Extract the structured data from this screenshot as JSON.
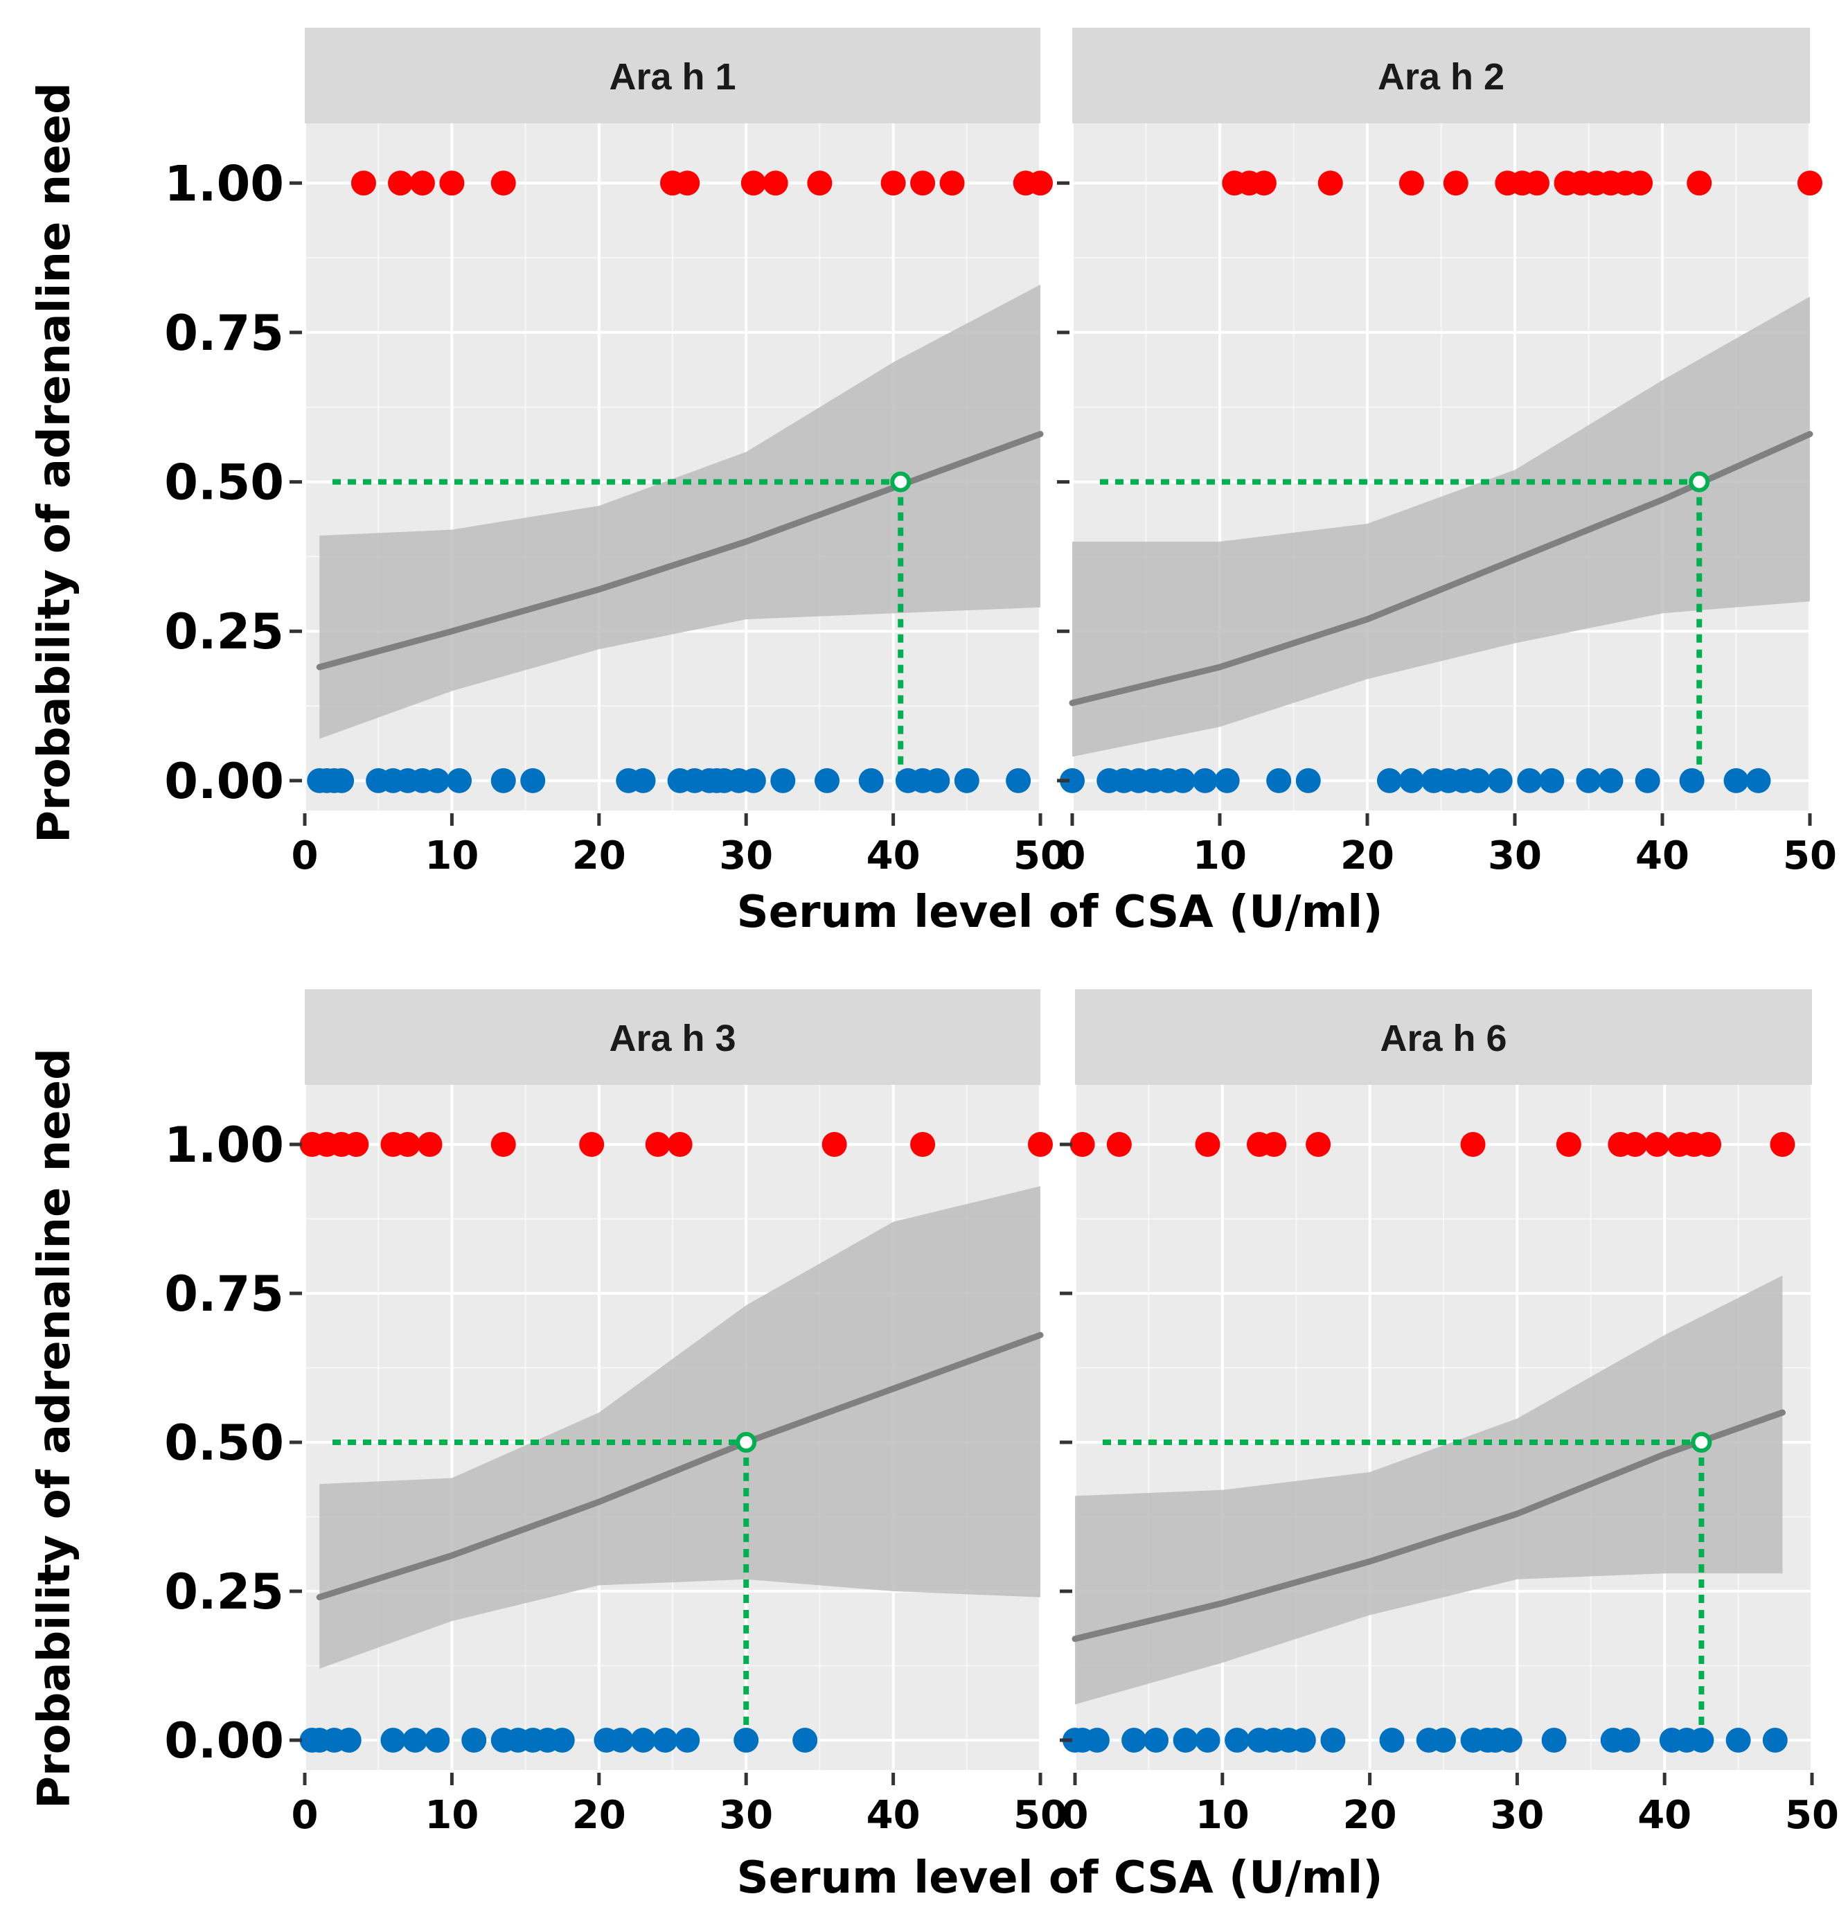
{
  "chart_data": {
    "type": "scatter",
    "layout": "facet-grid 2x2",
    "xlabel": "Serum level of CSA (U/ml)",
    "ylabel": "Probability of adrenaline need",
    "xlim": [
      0,
      50
    ],
    "ylim": [
      -0.05,
      1.1
    ],
    "x_ticks": [
      "0",
      "10",
      "20",
      "30",
      "40",
      "50"
    ],
    "y_ticks": [
      "0.00",
      "0.25",
      "0.50",
      "0.75",
      "1.00"
    ],
    "y_tick_values": [
      0,
      0.25,
      0.5,
      0.75,
      1.0
    ],
    "grid": true,
    "threshold_probability": 0.5,
    "colors": {
      "panel_bg": "#ebebeb",
      "strip_bg": "#d9d9d9",
      "grid": "#ffffff",
      "needed": "#ff0000",
      "not_needed": "#0070c0",
      "fit_line": "#808080",
      "ribbon": "#bdbdbd",
      "threshold": "#00b050"
    },
    "panels": [
      {
        "title": "Ara h 1",
        "fit": {
          "x": [
            1,
            10,
            20,
            30,
            40,
            50
          ],
          "y": [
            0.19,
            0.25,
            0.32,
            0.4,
            0.49,
            0.58
          ]
        },
        "ci_lower": {
          "x": [
            1,
            10,
            20,
            30,
            40,
            50
          ],
          "y": [
            0.07,
            0.15,
            0.22,
            0.27,
            0.28,
            0.29
          ]
        },
        "ci_upper": {
          "x": [
            1,
            10,
            20,
            30,
            40,
            50
          ],
          "y": [
            0.41,
            0.42,
            0.46,
            0.55,
            0.7,
            0.83
          ]
        },
        "threshold_x": 40.5,
        "points_y1": [
          4,
          6.5,
          8,
          10,
          13.5,
          25,
          26,
          30.5,
          32,
          35,
          40,
          42,
          44,
          49,
          50
        ],
        "points_y0": [
          1,
          1.5,
          2,
          2.5,
          5,
          6,
          7,
          8,
          9,
          10.5,
          13.5,
          15.5,
          22,
          23,
          25.5,
          26.5,
          27.5,
          28,
          28.5,
          29.5,
          30.5,
          32.5,
          35.5,
          38.5,
          41,
          42,
          43,
          45,
          48.5
        ]
      },
      {
        "title": "Ara h 2",
        "fit": {
          "x": [
            0,
            10,
            20,
            30,
            40,
            50
          ],
          "y": [
            0.13,
            0.19,
            0.27,
            0.37,
            0.47,
            0.58
          ]
        },
        "ci_lower": {
          "x": [
            0,
            10,
            20,
            30,
            40,
            50
          ],
          "y": [
            0.04,
            0.09,
            0.17,
            0.23,
            0.28,
            0.3
          ]
        },
        "ci_upper": {
          "x": [
            0,
            10,
            20,
            30,
            40,
            50
          ],
          "y": [
            0.4,
            0.4,
            0.43,
            0.52,
            0.67,
            0.81
          ]
        },
        "threshold_x": 42.5,
        "points_y1": [
          11,
          12,
          13,
          17.5,
          23,
          26,
          29.5,
          30.5,
          31.5,
          33.5,
          34.5,
          35.5,
          36.5,
          37.5,
          38.5,
          42.5,
          50
        ],
        "points_y0": [
          0,
          2.5,
          3.5,
          4.5,
          5.5,
          6.5,
          7.5,
          9,
          10.5,
          14,
          16,
          21.5,
          23,
          24.5,
          25.5,
          26.5,
          27.5,
          29,
          31,
          32.5,
          35,
          36.5,
          39,
          42,
          45,
          46.5
        ]
      },
      {
        "title": "Ara h 3",
        "fit": {
          "x": [
            1,
            10,
            20,
            30,
            40,
            50
          ],
          "y": [
            0.24,
            0.31,
            0.4,
            0.5,
            0.59,
            0.68
          ]
        },
        "ci_lower": {
          "x": [
            1,
            10,
            20,
            30,
            40,
            50
          ],
          "y": [
            0.12,
            0.2,
            0.26,
            0.27,
            0.25,
            0.24
          ]
        },
        "ci_upper": {
          "x": [
            1,
            10,
            20,
            30,
            40,
            50
          ],
          "y": [
            0.43,
            0.44,
            0.55,
            0.73,
            0.87,
            0.93
          ]
        },
        "threshold_x": 30,
        "points_y1": [
          0.5,
          1.5,
          2.5,
          3.5,
          6,
          7,
          8.5,
          13.5,
          19.5,
          24,
          25.5,
          36,
          42,
          50
        ],
        "points_y0": [
          0.5,
          1,
          2,
          3,
          6,
          7.5,
          9,
          11.5,
          13.5,
          14.5,
          15.5,
          16.5,
          17.5,
          20.5,
          21.5,
          23,
          24.5,
          26,
          30,
          34
        ]
      },
      {
        "title": "Ara h 6",
        "fit": {
          "x": [
            0,
            10,
            20,
            30,
            40,
            48
          ],
          "y": [
            0.17,
            0.23,
            0.3,
            0.38,
            0.48,
            0.55
          ]
        },
        "ci_lower": {
          "x": [
            0,
            10,
            20,
            30,
            40,
            48
          ],
          "y": [
            0.06,
            0.13,
            0.21,
            0.27,
            0.28,
            0.28
          ]
        },
        "ci_upper": {
          "x": [
            0,
            10,
            20,
            30,
            40,
            48
          ],
          "y": [
            0.41,
            0.42,
            0.45,
            0.54,
            0.68,
            0.78
          ]
        },
        "threshold_x": 42.5,
        "points_y1": [
          0.5,
          3,
          9,
          12.5,
          13.5,
          16.5,
          27,
          33.5,
          37,
          38,
          39.5,
          41,
          42,
          43,
          48
        ],
        "points_y0": [
          0,
          0.5,
          1.5,
          4,
          5.5,
          7.5,
          9,
          11,
          12.5,
          13.5,
          14.5,
          15.5,
          17.5,
          21.5,
          24,
          25,
          27,
          28,
          28.5,
          29.5,
          32.5,
          36.5,
          37.5,
          40.5,
          41.5,
          42.5,
          45,
          47.5
        ]
      }
    ]
  }
}
